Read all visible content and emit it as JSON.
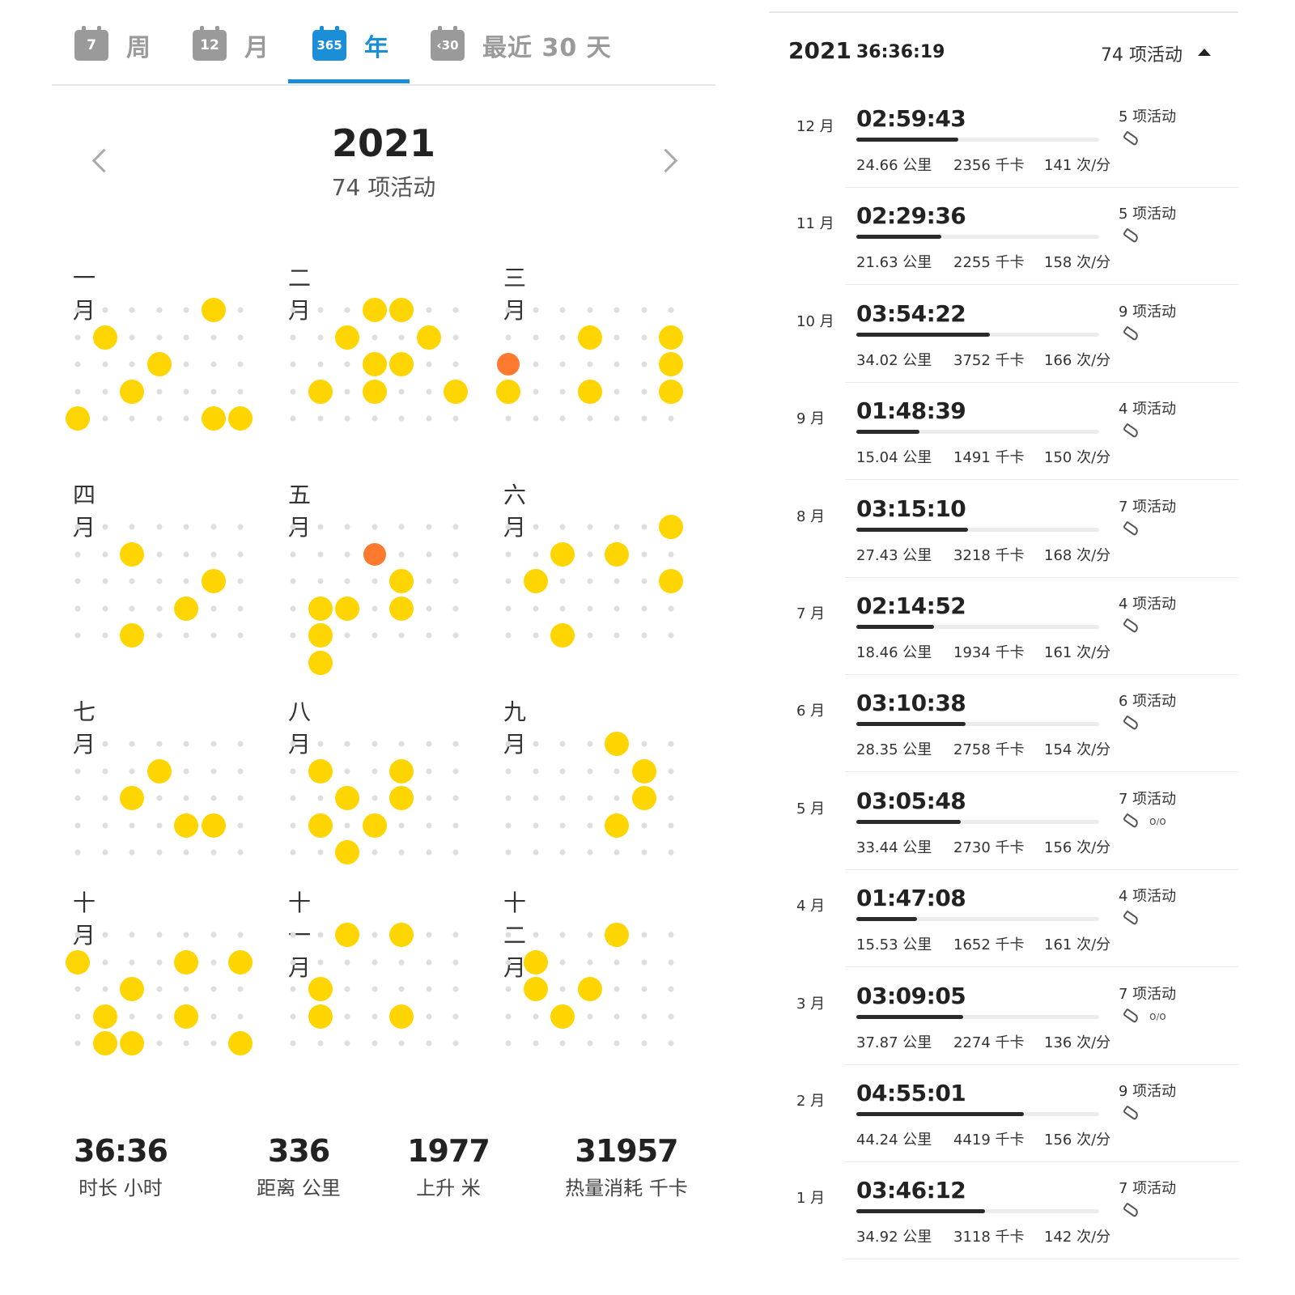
{
  "tabs": [
    {
      "icon_text": "7",
      "label": "周",
      "active": false
    },
    {
      "icon_text": "12",
      "label": "月",
      "active": false
    },
    {
      "icon_text": "365",
      "label": "年",
      "active": true
    },
    {
      "icon_text": "‹30",
      "label": "最近 30 天",
      "active": false
    }
  ],
  "year_header": {
    "year": "2021",
    "activity_count": "74 项活动"
  },
  "months": [
    {
      "label": "一月",
      "days": [
        [
          5,
          0,
          1
        ],
        [
          1,
          1,
          1
        ],
        [
          3,
          2,
          1
        ],
        [
          2,
          3,
          1
        ],
        [
          0,
          4,
          1
        ],
        [
          5,
          4,
          1
        ],
        [
          6,
          4,
          1
        ]
      ]
    },
    {
      "label": "二月",
      "days": [
        [
          3,
          0,
          1
        ],
        [
          4,
          0,
          1
        ],
        [
          2,
          1,
          1
        ],
        [
          5,
          1,
          1
        ],
        [
          3,
          2,
          1
        ],
        [
          4,
          2,
          1
        ],
        [
          1,
          3,
          1
        ],
        [
          3,
          3,
          1
        ],
        [
          6,
          3,
          1
        ]
      ]
    },
    {
      "label": "三月",
      "days": [
        [
          3,
          1,
          1
        ],
        [
          6,
          1,
          1
        ],
        [
          0,
          2,
          2
        ],
        [
          6,
          2,
          1
        ],
        [
          0,
          3,
          1
        ],
        [
          3,
          3,
          1
        ],
        [
          6,
          3,
          1
        ]
      ]
    },
    {
      "label": "四月",
      "days": [
        [
          2,
          1,
          1
        ],
        [
          5,
          2,
          1
        ],
        [
          4,
          3,
          1
        ],
        [
          2,
          4,
          1
        ]
      ]
    },
    {
      "label": "五月",
      "days": [
        [
          3,
          1,
          2
        ],
        [
          4,
          2,
          1
        ],
        [
          1,
          3,
          1
        ],
        [
          2,
          3,
          1
        ],
        [
          4,
          3,
          1
        ],
        [
          1,
          4,
          1
        ],
        [
          1,
          5,
          1
        ]
      ]
    },
    {
      "label": "六月",
      "days": [
        [
          6,
          0,
          1
        ],
        [
          2,
          1,
          1
        ],
        [
          4,
          1,
          1
        ],
        [
          1,
          2,
          1
        ],
        [
          6,
          2,
          1
        ],
        [
          2,
          4,
          1
        ]
      ]
    },
    {
      "label": "七月",
      "days": [
        [
          3,
          1,
          1
        ],
        [
          2,
          2,
          1
        ],
        [
          4,
          3,
          1
        ],
        [
          5,
          3,
          1
        ]
      ]
    },
    {
      "label": "八月",
      "days": [
        [
          1,
          1,
          1
        ],
        [
          4,
          1,
          1
        ],
        [
          2,
          2,
          1
        ],
        [
          4,
          2,
          1
        ],
        [
          1,
          3,
          1
        ],
        [
          3,
          3,
          1
        ],
        [
          2,
          4,
          1
        ]
      ]
    },
    {
      "label": "九月",
      "days": [
        [
          4,
          0,
          1
        ],
        [
          5,
          1,
          1
        ],
        [
          5,
          2,
          1
        ],
        [
          4,
          3,
          1
        ]
      ]
    },
    {
      "label": "十月",
      "days": [
        [
          0,
          1,
          1
        ],
        [
          4,
          1,
          1
        ],
        [
          6,
          1,
          1
        ],
        [
          2,
          2,
          1
        ],
        [
          1,
          3,
          1
        ],
        [
          4,
          3,
          1
        ],
        [
          1,
          4,
          1
        ],
        [
          2,
          4,
          1
        ],
        [
          6,
          4,
          1
        ]
      ]
    },
    {
      "label": "十一月",
      "days": [
        [
          2,
          0,
          1
        ],
        [
          4,
          0,
          1
        ],
        [
          1,
          2,
          1
        ],
        [
          1,
          3,
          1
        ],
        [
          4,
          3,
          1
        ]
      ]
    },
    {
      "label": "十二月",
      "days": [
        [
          4,
          0,
          1
        ],
        [
          1,
          1,
          1
        ],
        [
          1,
          2,
          1
        ],
        [
          3,
          2,
          1
        ],
        [
          2,
          3,
          1
        ]
      ]
    }
  ],
  "totals": [
    {
      "value": "36:36",
      "label": "时长 小时"
    },
    {
      "value": "336",
      "label": "距离 公里"
    },
    {
      "value": "1977",
      "label": "上升 米"
    },
    {
      "value": "31957",
      "label": "热量消耗 千卡"
    }
  ],
  "summary": {
    "year": "2021",
    "duration": "36:36:19",
    "activity_count": "74 项活动"
  },
  "monthly_rows": [
    {
      "month": "12 月",
      "duration": "02:59:43",
      "progress": 0.42,
      "distance": "24.66 公里",
      "calories": "2356 千卡",
      "heart_rate": "141 次/分",
      "activities": "5 项活动",
      "sports": [
        "running-shoe-icon"
      ]
    },
    {
      "month": "11 月",
      "duration": "02:29:36",
      "progress": 0.35,
      "distance": "21.63 公里",
      "calories": "2255 千卡",
      "heart_rate": "158 次/分",
      "activities": "5 项活动",
      "sports": [
        "running-shoe-icon"
      ]
    },
    {
      "month": "10 月",
      "duration": "03:54:22",
      "progress": 0.55,
      "distance": "34.02 公里",
      "calories": "3752 千卡",
      "heart_rate": "166 次/分",
      "activities": "9 项活动",
      "sports": [
        "running-shoe-icon"
      ]
    },
    {
      "month": "9 月",
      "duration": "01:48:39",
      "progress": 0.26,
      "distance": "15.04 公里",
      "calories": "1491 千卡",
      "heart_rate": "150 次/分",
      "activities": "4 项活动",
      "sports": [
        "running-shoe-icon"
      ]
    },
    {
      "month": "8 月",
      "duration": "03:15:10",
      "progress": 0.46,
      "distance": "27.43 公里",
      "calories": "3218 千卡",
      "heart_rate": "168 次/分",
      "activities": "7 项活动",
      "sports": [
        "running-shoe-icon"
      ]
    },
    {
      "month": "7 月",
      "duration": "02:14:52",
      "progress": 0.32,
      "distance": "18.46 公里",
      "calories": "1934 千卡",
      "heart_rate": "161 次/分",
      "activities": "4 项活动",
      "sports": [
        "running-shoe-icon"
      ]
    },
    {
      "month": "6 月",
      "duration": "03:10:38",
      "progress": 0.45,
      "distance": "28.35 公里",
      "calories": "2758 千卡",
      "heart_rate": "154 次/分",
      "activities": "6 项活动",
      "sports": [
        "running-shoe-icon"
      ]
    },
    {
      "month": "5 月",
      "duration": "03:05:48",
      "progress": 0.43,
      "distance": "33.44 公里",
      "calories": "2730 千卡",
      "heart_rate": "156 次/分",
      "activities": "7 项活动",
      "sports": [
        "running-shoe-icon",
        "bicycle-icon"
      ]
    },
    {
      "month": "4 月",
      "duration": "01:47:08",
      "progress": 0.25,
      "distance": "15.53 公里",
      "calories": "1652 千卡",
      "heart_rate": "161 次/分",
      "activities": "4 项活动",
      "sports": [
        "running-shoe-icon"
      ]
    },
    {
      "month": "3 月",
      "duration": "03:09:05",
      "progress": 0.44,
      "distance": "37.87 公里",
      "calories": "2274 千卡",
      "heart_rate": "136 次/分",
      "activities": "7 项活动",
      "sports": [
        "running-shoe-icon",
        "bicycle-icon"
      ]
    },
    {
      "month": "2 月",
      "duration": "04:55:01",
      "progress": 0.69,
      "distance": "44.24 公里",
      "calories": "4419 千卡",
      "heart_rate": "156 次/分",
      "activities": "9 项活动",
      "sports": [
        "running-shoe-icon"
      ]
    },
    {
      "month": "1 月",
      "duration": "03:46:12",
      "progress": 0.53,
      "distance": "34.92 公里",
      "calories": "3118 千卡",
      "heart_rate": "142 次/分",
      "activities": "7 项活动",
      "sports": [
        "running-shoe-icon"
      ]
    }
  ],
  "colors": {
    "accent": "#1a8fd8",
    "activity_dot": "#ffd500",
    "highlight_dot": "#ff7a2e",
    "empty_dot": "#dedede"
  }
}
